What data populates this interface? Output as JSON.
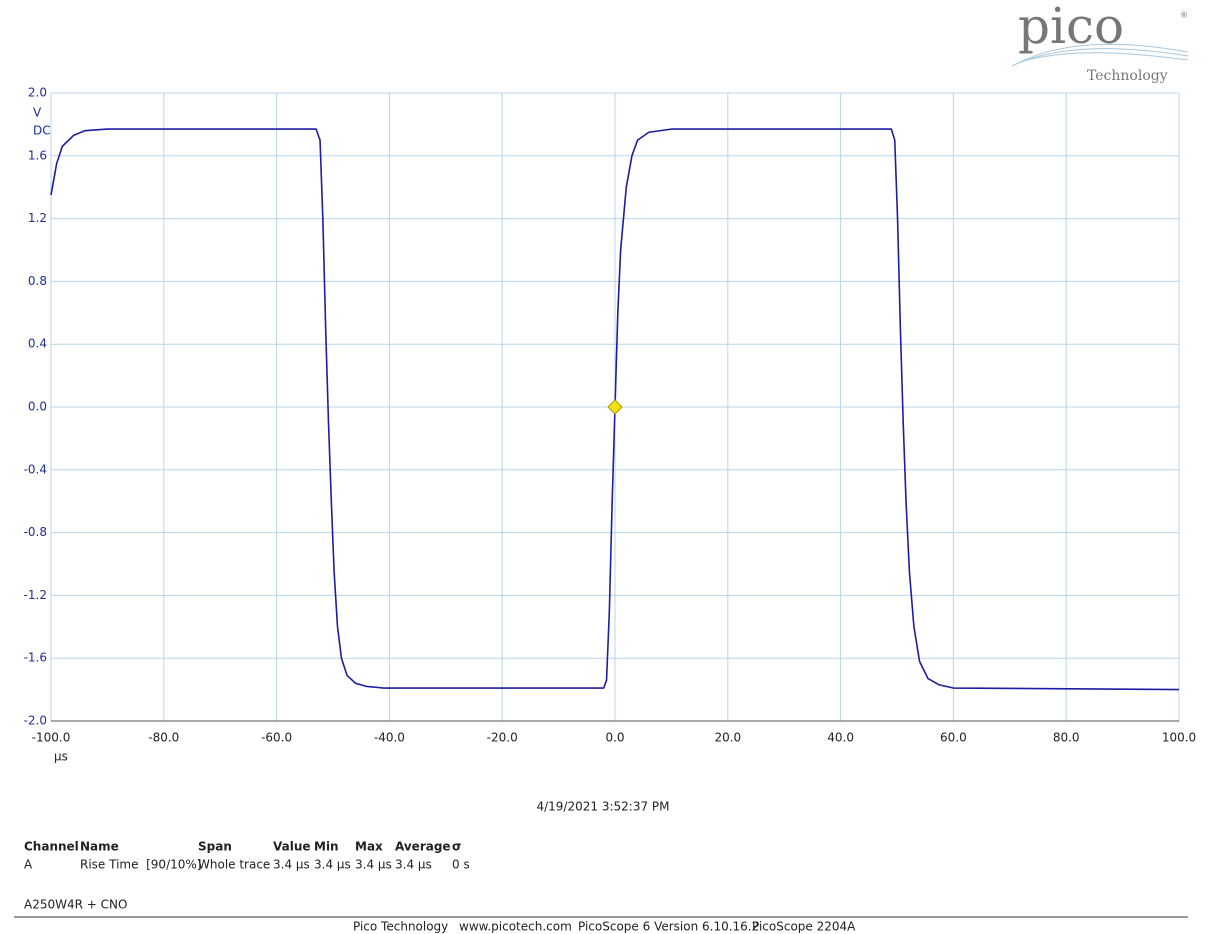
{
  "logo": {
    "brand": "pico",
    "subtitle": "Technology",
    "mark": "®"
  },
  "chart_data": {
    "type": "line",
    "color": "#1c1ca6",
    "grid": true,
    "y_unit": "V",
    "y_coupling": "DC",
    "x_unit": "µs",
    "xlim": [
      -100,
      100
    ],
    "ylim": [
      -2,
      2
    ],
    "xticks": [
      {
        "value": -100,
        "label": "-100.0"
      },
      {
        "value": -80,
        "label": "-80.0"
      },
      {
        "value": -60,
        "label": "-60.0"
      },
      {
        "value": -40,
        "label": "-40.0"
      },
      {
        "value": -20,
        "label": "-20.0"
      },
      {
        "value": 0,
        "label": "0.0"
      },
      {
        "value": 20,
        "label": "20.0"
      },
      {
        "value": 40,
        "label": "40.0"
      },
      {
        "value": 60,
        "label": "60.0"
      },
      {
        "value": 80,
        "label": "80.0"
      },
      {
        "value": 100,
        "label": "100.0"
      }
    ],
    "yticks": [
      {
        "value": 2,
        "label": "2.0"
      },
      1.6,
      1.2,
      0.8,
      0.4,
      {
        "value": 0,
        "label": "0.0"
      },
      -0.4,
      -0.8,
      -1.2,
      -1.6,
      {
        "value": -2,
        "label": "-2.0"
      }
    ],
    "x": [
      -100,
      -99,
      -98,
      -96,
      -94,
      -90,
      -53,
      -52.3,
      -51.8,
      -51.3,
      -50.8,
      -50.3,
      -49.8,
      -49.2,
      -48.5,
      -47.5,
      -46,
      -44,
      -41,
      -2,
      -1.5,
      -1,
      -0.5,
      0,
      0.5,
      1,
      2,
      3,
      4,
      6,
      10,
      49,
      49.6,
      50.1,
      50.6,
      51.1,
      51.6,
      52.2,
      53,
      54,
      55.5,
      57.5,
      60,
      100
    ],
    "values": [
      1.35,
      1.55,
      1.66,
      1.73,
      1.76,
      1.77,
      1.77,
      1.7,
      1.2,
      0.5,
      -0.1,
      -0.6,
      -1.05,
      -1.4,
      -1.6,
      -1.71,
      -1.76,
      -1.78,
      -1.79,
      -1.79,
      -1.74,
      -1.3,
      -0.6,
      0,
      0.6,
      1.0,
      1.4,
      1.6,
      1.7,
      1.75,
      1.77,
      1.77,
      1.7,
      1.2,
      0.5,
      -0.1,
      -0.6,
      -1.05,
      -1.4,
      -1.62,
      -1.73,
      -1.77,
      -1.79,
      -1.8
    ],
    "trigger": {
      "x": 0,
      "y": 0
    }
  },
  "timestamp": "4/19/2021 3:52:37 PM",
  "measurements": {
    "header": [
      "Channel",
      "Name",
      "Span",
      "Value",
      "Min",
      "Max",
      "Average",
      "σ"
    ],
    "rows": [
      [
        "A",
        "Rise Time  [90/10%]",
        "Whole trace",
        "3.4 µs",
        "3.4 µs",
        "3.4 µs",
        "3.4 µs",
        "0 s"
      ]
    ]
  },
  "note": "A250W4R + CNO",
  "footer": [
    "Pico Technology",
    "www.picotech.com",
    "PicoScope 6 Version 6.10.16.2",
    "PicoScope 2204A"
  ]
}
